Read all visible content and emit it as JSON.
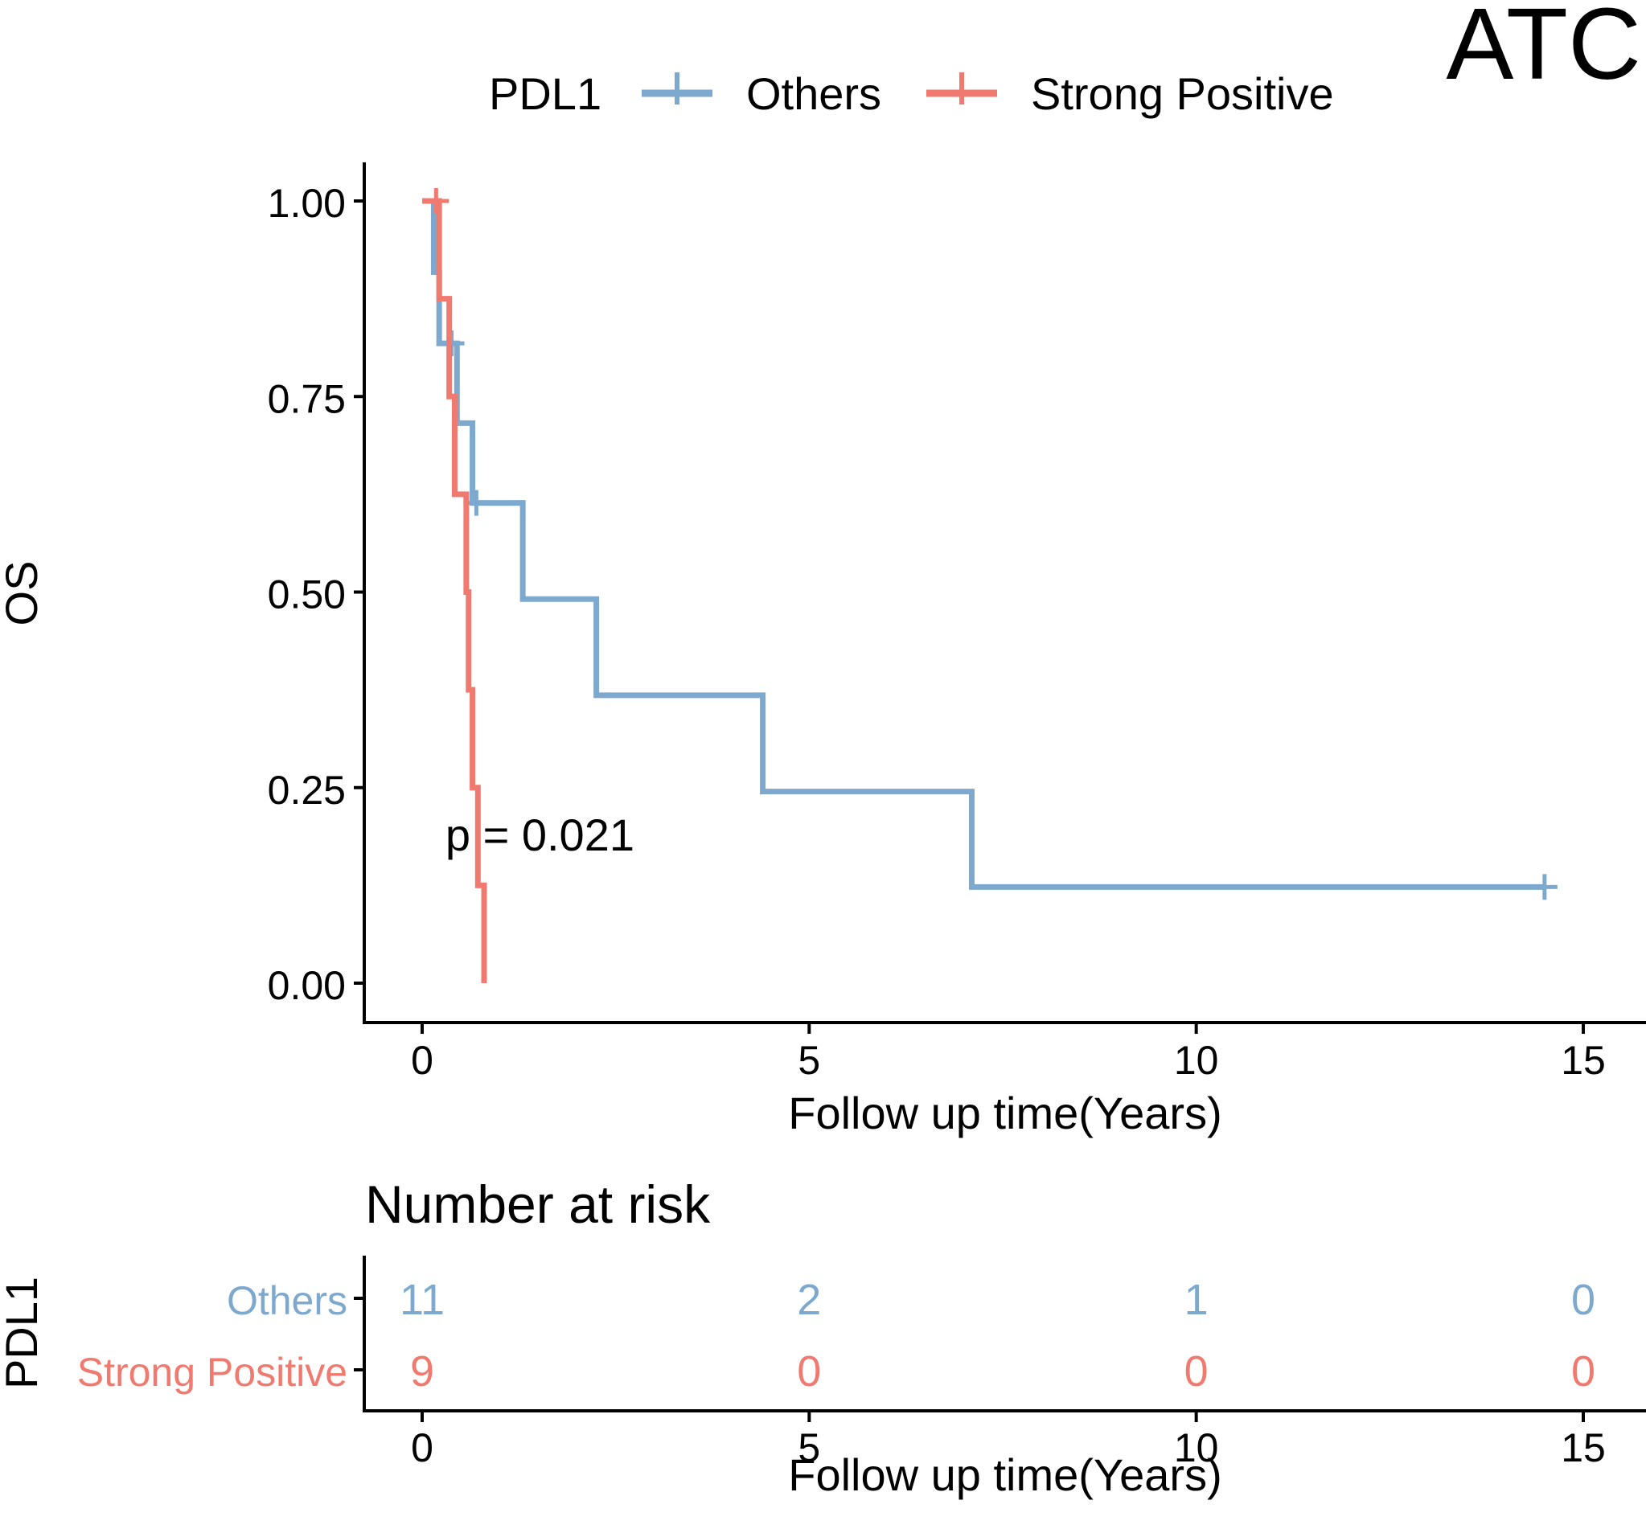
{
  "panel_label": "ATC",
  "legend": {
    "title": "PDL1",
    "entries": [
      {
        "label": "Others",
        "color": "#7EA9CE"
      },
      {
        "label": "Strong Positive",
        "color": "#F07A6F"
      }
    ]
  },
  "chart_data": {
    "type": "line",
    "subtype": "kaplan-meier",
    "ylabel": "OS",
    "xlabel": "Follow up time(Years)",
    "xlim": [
      -0.7,
      15.7
    ],
    "ylim": [
      -0.05,
      1.05
    ],
    "xticks": [
      0,
      5,
      10,
      15
    ],
    "yticks": [
      0,
      0.25,
      0.5,
      0.75,
      1.0
    ],
    "ytick_labels": [
      "0.00",
      "0.25",
      "0.50",
      "0.75",
      "1.00"
    ],
    "pvalue_text": "p = 0.021",
    "pvalue_position": {
      "x": 0.3,
      "y": 0.19
    },
    "series": [
      {
        "name": "Others",
        "color": "#7EA9CE",
        "steps": [
          [
            0,
            1.0
          ],
          [
            0.15,
            0.909
          ],
          [
            0.22,
            0.818
          ],
          [
            0.45,
            0.716
          ],
          [
            0.65,
            0.614
          ],
          [
            1.3,
            0.491
          ],
          [
            2.25,
            0.368
          ],
          [
            4.4,
            0.245
          ],
          [
            7.1,
            0.123
          ],
          [
            14.5,
            0.123
          ]
        ],
        "censors": [
          [
            0.38,
            0.818
          ],
          [
            0.7,
            0.614
          ],
          [
            14.5,
            0.123
          ]
        ]
      },
      {
        "name": "Strong Positive",
        "color": "#F07A6F",
        "steps": [
          [
            0,
            1.0
          ],
          [
            0.22,
            0.875
          ],
          [
            0.35,
            0.75
          ],
          [
            0.42,
            0.625
          ],
          [
            0.57,
            0.5
          ],
          [
            0.6,
            0.375
          ],
          [
            0.65,
            0.25
          ],
          [
            0.72,
            0.125
          ],
          [
            0.8,
            0.0
          ]
        ],
        "censors": [
          [
            0.18,
            1.0
          ]
        ]
      }
    ]
  },
  "risk_table": {
    "title": "Number at risk",
    "ylabel": "PDL1",
    "xlabel": "Follow up time(Years)",
    "times": [
      0,
      5,
      10,
      15
    ],
    "rows": [
      {
        "label": "Others",
        "color": "#7EA9CE",
        "counts": [
          "11",
          "2",
          "1",
          "0"
        ]
      },
      {
        "label": "Strong Positive",
        "color": "#F07A6F",
        "counts": [
          "9",
          "0",
          "0",
          "0"
        ]
      }
    ]
  }
}
